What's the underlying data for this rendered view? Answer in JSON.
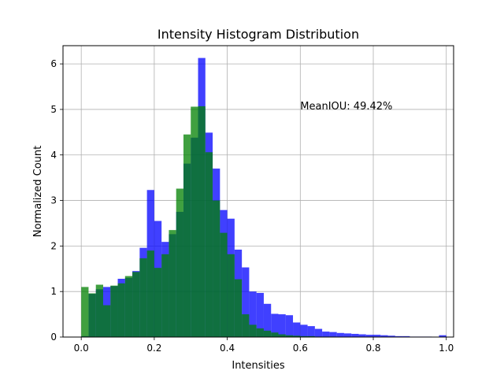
{
  "chart_data": {
    "type": "bar",
    "title": "Intensity Histogram Distribution",
    "xlabel": "Intensities",
    "ylabel": "Normalized Count",
    "xlim": [
      -0.05,
      1.02
    ],
    "ylim": [
      0,
      6.4
    ],
    "xticks": [
      0.0,
      0.2,
      0.4,
      0.6,
      0.8,
      1.0
    ],
    "xtick_labels": [
      "0.0",
      "0.2",
      "0.4",
      "0.6",
      "0.8",
      "1.0"
    ],
    "yticks": [
      0,
      1,
      2,
      3,
      4,
      5,
      6
    ],
    "ytick_labels": [
      "0",
      "1",
      "2",
      "3",
      "4",
      "5",
      "6"
    ],
    "grid": true,
    "annotation": {
      "text": "MeanIOU: 49.42%",
      "x": 0.6,
      "y": 5.0
    },
    "series": [
      {
        "color": "#0000ff",
        "alpha": 0.75,
        "bin_start": 0.0,
        "bin_width": 0.02,
        "values": [
          0.02,
          0.95,
          1.05,
          1.1,
          1.12,
          1.28,
          1.3,
          1.45,
          1.96,
          3.23,
          2.55,
          2.09,
          2.26,
          2.75,
          3.81,
          4.38,
          6.13,
          4.49,
          3.7,
          2.79,
          2.6,
          1.92,
          1.53,
          1.0,
          0.97,
          0.73,
          0.51,
          0.5,
          0.48,
          0.32,
          0.27,
          0.24,
          0.18,
          0.12,
          0.11,
          0.09,
          0.08,
          0.07,
          0.06,
          0.05,
          0.05,
          0.04,
          0.03,
          0.02,
          0.02,
          0.01,
          0.01,
          0.01,
          0.0,
          0.04
        ]
      },
      {
        "color": "#008000",
        "alpha": 0.75,
        "bin_start": 0.0,
        "bin_width": 0.02,
        "values": [
          1.1,
          0.96,
          1.15,
          0.7,
          1.13,
          1.18,
          1.34,
          1.43,
          1.73,
          1.9,
          1.52,
          1.82,
          2.35,
          3.26,
          4.45,
          5.06,
          5.07,
          4.06,
          3.0,
          2.29,
          1.82,
          1.27,
          0.5,
          0.27,
          0.19,
          0.14,
          0.1,
          0.06,
          0.04,
          0.03,
          0.02,
          0.02,
          0.01,
          0.01,
          0.01,
          0.0,
          0.0,
          0.0,
          0.0,
          0.0,
          0.0,
          0.0,
          0.0,
          0.0,
          0.0,
          0.0,
          0.0,
          0.0,
          0.0,
          0.0
        ]
      }
    ]
  }
}
